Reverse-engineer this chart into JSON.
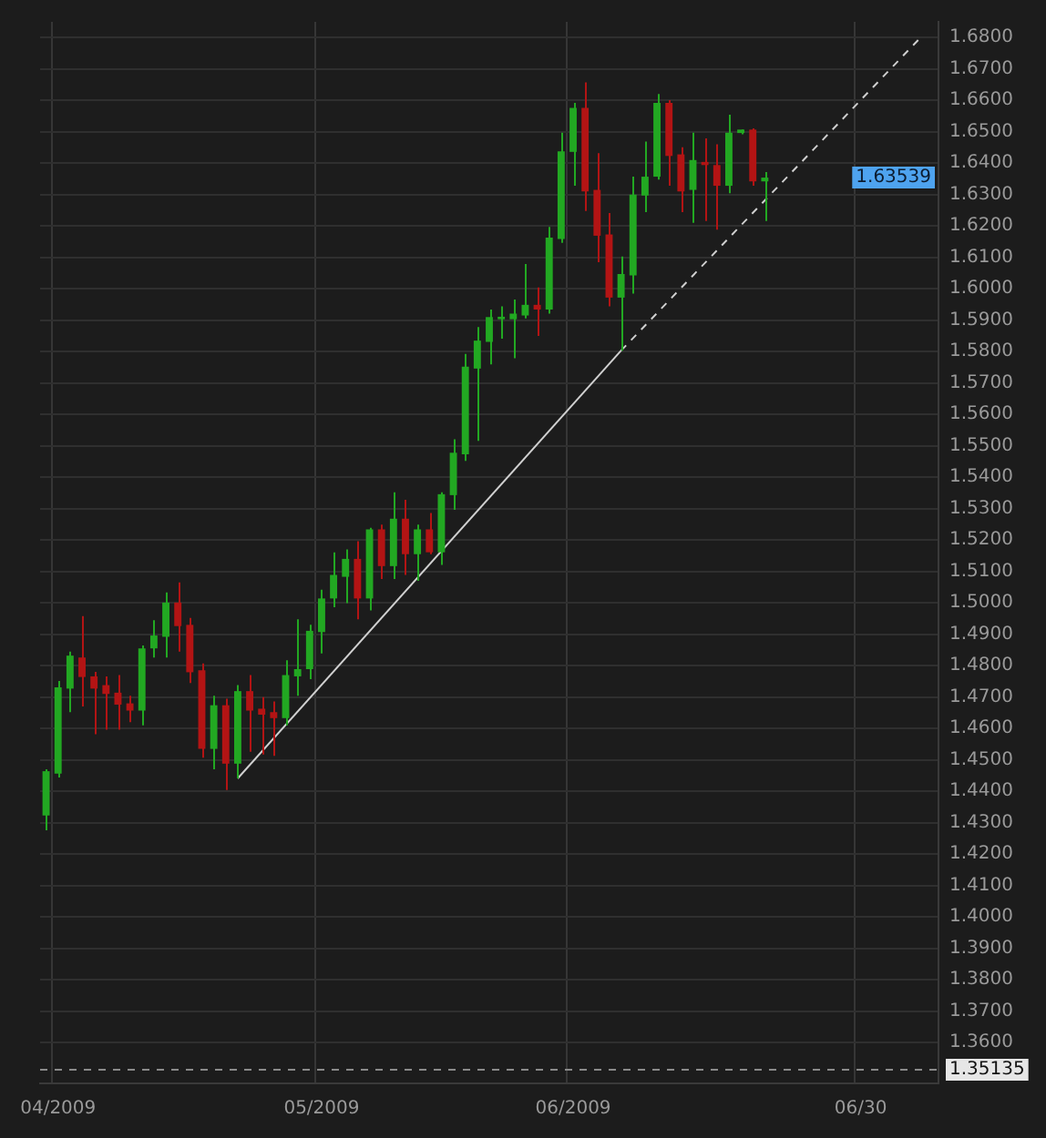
{
  "chart_data": {
    "type": "candlestick",
    "categories": [
      null,
      "04/2009",
      null,
      null,
      null,
      null,
      null,
      null,
      null,
      null,
      null,
      null,
      null,
      null,
      null,
      null,
      null,
      null,
      null,
      null,
      null,
      null,
      null,
      "05/2009",
      null,
      null,
      null,
      null,
      null,
      null,
      null,
      null,
      null,
      null,
      null,
      null,
      null,
      null,
      null,
      null,
      null,
      null,
      null,
      null,
      "06/2009",
      null,
      null,
      null,
      null,
      null,
      null,
      null,
      null,
      null,
      null,
      null,
      null,
      null,
      null,
      null,
      null,
      null,
      null,
      null,
      null,
      null,
      null,
      null,
      "06/30",
      null,
      null,
      null,
      null,
      null,
      null
    ],
    "ohlc": [
      [
        1.4323,
        1.447,
        1.4276,
        1.4464
      ],
      [
        1.4456,
        1.4751,
        1.4444,
        1.4731
      ],
      [
        1.4727,
        1.4845,
        1.4652,
        1.4832
      ],
      [
        1.4826,
        1.4958,
        1.467,
        1.4764
      ],
      [
        1.4766,
        1.478,
        1.4582,
        1.4727
      ],
      [
        1.4738,
        1.4766,
        1.4596,
        1.471
      ],
      [
        1.4714,
        1.477,
        1.4596,
        1.4676
      ],
      [
        1.468,
        1.4704,
        1.462,
        1.4657
      ],
      [
        1.4657,
        1.4864,
        1.461,
        1.4855
      ],
      [
        1.4855,
        1.4945,
        1.4826,
        1.4896
      ],
      [
        1.4892,
        1.5033,
        1.4826,
        1.5001
      ],
      [
        1.5001,
        1.5065,
        1.4845,
        1.4926
      ],
      [
        1.493,
        1.4952,
        1.4745,
        1.4779
      ],
      [
        1.4785,
        1.4807,
        1.4507,
        1.4535
      ],
      [
        1.4535,
        1.4704,
        1.447,
        1.4674
      ],
      [
        1.4674,
        1.4695,
        1.4404,
        1.4488
      ],
      [
        1.4488,
        1.4738,
        1.4441,
        1.4719
      ],
      [
        1.4719,
        1.477,
        1.4526,
        1.4657
      ],
      [
        1.4663,
        1.47,
        1.4517,
        1.4644
      ],
      [
        1.4652,
        1.4686,
        1.4513,
        1.4633
      ],
      [
        1.4633,
        1.4817,
        1.461,
        1.477
      ],
      [
        1.4766,
        1.4948,
        1.4704,
        1.4789
      ],
      [
        1.4789,
        1.493,
        1.4757,
        1.4911
      ],
      [
        1.4907,
        1.5042,
        1.4839,
        1.5014
      ],
      [
        1.5014,
        1.5161,
        1.4986,
        1.5089
      ],
      [
        1.5083,
        1.517,
        1.4999,
        1.514
      ],
      [
        1.514,
        1.5196,
        1.4948,
        1.5014
      ],
      [
        1.5014,
        1.5239,
        1.4976,
        1.5234
      ],
      [
        1.5234,
        1.5249,
        1.5076,
        1.5117
      ],
      [
        1.5117,
        1.5352,
        1.5076,
        1.5268
      ],
      [
        1.5268,
        1.5328,
        1.5089,
        1.5155
      ],
      [
        1.5155,
        1.5249,
        1.507,
        1.5234
      ],
      [
        1.5234,
        1.5286,
        1.5155,
        1.5161
      ],
      [
        1.5161,
        1.5352,
        1.5121,
        1.5346
      ],
      [
        1.5343,
        1.5521,
        1.5296,
        1.5478
      ],
      [
        1.5473,
        1.5793,
        1.5452,
        1.5752
      ],
      [
        1.5746,
        1.5878,
        1.5516,
        1.5835
      ],
      [
        1.5831,
        1.5934,
        1.5759,
        1.591
      ],
      [
        1.5903,
        1.5944,
        1.5841,
        1.5911
      ],
      [
        1.5903,
        1.5966,
        1.5779,
        1.5921
      ],
      [
        1.5915,
        1.6079,
        1.5906,
        1.5949
      ],
      [
        1.5949,
        1.6004,
        1.585,
        1.5934
      ],
      [
        1.5934,
        1.6197,
        1.5921,
        1.6163
      ],
      [
        1.6159,
        1.6497,
        1.6146,
        1.6438
      ],
      [
        1.6436,
        1.6592,
        1.6328,
        1.6576
      ],
      [
        1.6576,
        1.6657,
        1.6248,
        1.631
      ],
      [
        1.6315,
        1.6432,
        1.6085,
        1.6169
      ],
      [
        1.6173,
        1.6241,
        1.5944,
        1.5972
      ],
      [
        1.5972,
        1.6103,
        1.5803,
        1.6047
      ],
      [
        1.6043,
        1.6357,
        1.5985,
        1.63
      ],
      [
        1.6297,
        1.6469,
        1.6244,
        1.6357
      ],
      [
        1.6357,
        1.662,
        1.6348,
        1.6592
      ],
      [
        1.6592,
        1.6601,
        1.6328,
        1.6423
      ],
      [
        1.6428,
        1.6451,
        1.6244,
        1.631
      ],
      [
        1.6315,
        1.6497,
        1.621,
        1.641
      ],
      [
        1.6404,
        1.6479,
        1.6216,
        1.6394
      ],
      [
        1.6394,
        1.646,
        1.6188,
        1.6328
      ],
      [
        1.6328,
        1.6554,
        1.6304,
        1.6497
      ],
      [
        1.6496,
        1.6507,
        1.6492,
        1.6507
      ],
      [
        1.6507,
        1.6511,
        1.6328,
        1.6342
      ],
      [
        1.6342,
        1.6372,
        1.6216,
        1.6354
      ],
      null,
      null,
      null,
      null,
      null,
      null,
      null,
      null,
      null,
      null,
      null,
      null,
      null,
      null
    ],
    "colors": [
      "#22a822",
      "#22a822",
      "#22a822",
      "#b31414",
      "#b31414",
      "#b31414",
      "#b31414",
      "#b31414",
      "#22a822",
      "#22a822",
      "#22a822",
      "#b31414",
      "#b31414",
      "#b31414",
      "#22a822",
      "#b31414",
      "#22a822",
      "#b31414",
      "#b31414",
      "#b31414",
      "#22a822",
      "#22a822",
      "#22a822",
      "#22a822",
      "#22a822",
      "#22a822",
      "#b31414",
      "#22a822",
      "#b31414",
      "#22a822",
      "#b31414",
      "#22a822",
      "#b31414",
      "#22a822",
      "#22a822",
      "#22a822",
      "#22a822",
      "#22a822",
      "#22a822",
      "#22a822",
      "#22a822",
      "#b31414",
      "#22a822",
      "#22a822",
      "#22a822",
      "#b31414",
      "#b31414",
      "#b31414",
      "#22a822",
      "#22a822",
      "#22a822",
      "#22a822",
      "#b31414",
      "#b31414",
      "#22a822",
      "#b31414",
      "#b31414",
      "#22a822",
      "#22a822",
      "#b31414",
      "#22a822",
      null,
      null,
      null,
      null,
      null,
      null,
      null,
      null,
      null,
      null,
      null,
      null,
      null,
      null
    ],
    "series": [
      {
        "type": "line",
        "color": "#d0d0d0",
        "line_style": "solid",
        "values": [
          null,
          null,
          null,
          null,
          null,
          null,
          null,
          null,
          null,
          null,
          null,
          null,
          null,
          null,
          null,
          null,
          1.4441,
          null,
          null,
          null,
          null,
          null,
          null,
          null,
          null,
          null,
          null,
          null,
          null,
          null,
          null,
          null,
          null,
          null,
          null,
          null,
          null,
          null,
          null,
          null,
          null,
          null,
          null,
          null,
          null,
          null,
          null,
          null,
          1.5803,
          null,
          null,
          null,
          null,
          null,
          null,
          null,
          null,
          null,
          null,
          null,
          null,
          null,
          null,
          null,
          null,
          null,
          null,
          null,
          null,
          null,
          null,
          null,
          null,
          null,
          null
        ]
      },
      {
        "type": "line",
        "color": "#d0d0d0",
        "line_style": "dashed",
        "values": [
          null,
          null,
          null,
          null,
          null,
          null,
          null,
          null,
          null,
          null,
          null,
          null,
          null,
          null,
          null,
          null,
          null,
          null,
          null,
          null,
          null,
          null,
          null,
          null,
          null,
          null,
          null,
          null,
          null,
          null,
          null,
          null,
          null,
          null,
          null,
          null,
          null,
          null,
          null,
          null,
          null,
          null,
          null,
          null,
          null,
          null,
          null,
          null,
          1.5803,
          null,
          null,
          null,
          null,
          null,
          null,
          null,
          null,
          null,
          null,
          null,
          null,
          null,
          null,
          null,
          null,
          null,
          null,
          null,
          null,
          null,
          null,
          null,
          null,
          1.68,
          null
        ]
      }
    ],
    "ylim": [
      1.347,
      1.685
    ],
    "yticks": [
      {
        "value": 1.36,
        "label": "1.3600"
      },
      {
        "value": 1.37,
        "label": "1.3700"
      },
      {
        "value": 1.38,
        "label": "1.3800"
      },
      {
        "value": 1.39,
        "label": "1.3900"
      },
      {
        "value": 1.4,
        "label": "1.4000"
      },
      {
        "value": 1.41,
        "label": "1.4100"
      },
      {
        "value": 1.42,
        "label": "1.4200"
      },
      {
        "value": 1.43,
        "label": "1.4300"
      },
      {
        "value": 1.44,
        "label": "1.4400"
      },
      {
        "value": 1.45,
        "label": "1.4500"
      },
      {
        "value": 1.46,
        "label": "1.4600"
      },
      {
        "value": 1.47,
        "label": "1.4700"
      },
      {
        "value": 1.48,
        "label": "1.4800"
      },
      {
        "value": 1.49,
        "label": "1.4900"
      },
      {
        "value": 1.5,
        "label": "1.5000"
      },
      {
        "value": 1.51,
        "label": "1.5100"
      },
      {
        "value": 1.52,
        "label": "1.5200"
      },
      {
        "value": 1.53,
        "label": "1.5300"
      },
      {
        "value": 1.54,
        "label": "1.5400"
      },
      {
        "value": 1.55,
        "label": "1.5500"
      },
      {
        "value": 1.56,
        "label": "1.5600"
      },
      {
        "value": 1.57,
        "label": "1.5700"
      },
      {
        "value": 1.58,
        "label": "1.5800"
      },
      {
        "value": 1.59,
        "label": "1.5900"
      },
      {
        "value": 1.6,
        "label": "1.6000"
      },
      {
        "value": 1.61,
        "label": "1.6100"
      },
      {
        "value": 1.62,
        "label": "1.6200"
      },
      {
        "value": 1.63,
        "label": "1.6300"
      },
      {
        "value": 1.64,
        "label": "1.6400"
      },
      {
        "value": 1.65,
        "label": "1.6500"
      },
      {
        "value": 1.66,
        "label": "1.6600"
      },
      {
        "value": 1.67,
        "label": "1.6700"
      },
      {
        "value": 1.68,
        "label": "1.6800"
      }
    ],
    "grid": true,
    "ref_lines": [
      {
        "axis": "y",
        "value": 1.35135,
        "label": "1.35135",
        "color": "#8a8a8a",
        "line_style": "dashed"
      }
    ],
    "annotations": [
      "1.63539"
    ]
  }
}
